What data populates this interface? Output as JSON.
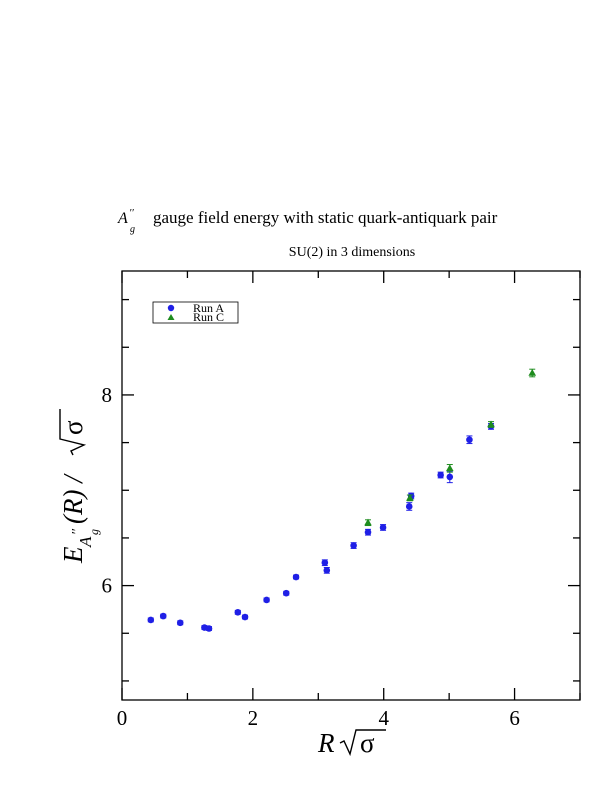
{
  "chart_data": {
    "type": "scatter",
    "title": "gauge field energy with static quark-antiquark pair",
    "title_symbol": "A",
    "title_symbol_sup": "′′",
    "title_symbol_sub": "g",
    "subtitle": "SU(2) in 3 dimensions",
    "xlabel": {
      "main": "R",
      "sqrt": "σ"
    },
    "ylabel": {
      "main": "E",
      "sup": "′′",
      "sub": "A",
      "subsub": "g",
      "arg": "(R) / ",
      "sqrt": "σ"
    },
    "xlim": [
      0,
      7
    ],
    "ylim": [
      4.8,
      9.3
    ],
    "x_ticks": [
      0,
      2,
      4,
      6
    ],
    "y_ticks": [
      6,
      8
    ],
    "grid": false,
    "legend_position": "top-left",
    "series": [
      {
        "name": "Run A",
        "color": "#1f1fe6",
        "marker": "circle",
        "points": [
          {
            "x": 0.44,
            "y": 5.64,
            "err": 0.02
          },
          {
            "x": 0.63,
            "y": 5.68,
            "err": 0.02
          },
          {
            "x": 0.89,
            "y": 5.61,
            "err": 0.02
          },
          {
            "x": 1.26,
            "y": 5.56,
            "err": 0.02
          },
          {
            "x": 1.33,
            "y": 5.55,
            "err": 0.02
          },
          {
            "x": 1.77,
            "y": 5.72,
            "err": 0.02
          },
          {
            "x": 1.88,
            "y": 5.67,
            "err": 0.02
          },
          {
            "x": 2.21,
            "y": 5.85,
            "err": 0.02
          },
          {
            "x": 2.51,
            "y": 5.92,
            "err": 0.02
          },
          {
            "x": 2.66,
            "y": 6.09,
            "err": 0.02
          },
          {
            "x": 3.1,
            "y": 6.24,
            "err": 0.03
          },
          {
            "x": 3.13,
            "y": 6.16,
            "err": 0.03
          },
          {
            "x": 3.54,
            "y": 6.42,
            "err": 0.03
          },
          {
            "x": 3.76,
            "y": 6.56,
            "err": 0.03
          },
          {
            "x": 3.99,
            "y": 6.61,
            "err": 0.03
          },
          {
            "x": 4.39,
            "y": 6.83,
            "err": 0.04
          },
          {
            "x": 4.42,
            "y": 6.94,
            "err": 0.03
          },
          {
            "x": 4.87,
            "y": 7.16,
            "err": 0.03
          },
          {
            "x": 5.01,
            "y": 7.14,
            "err": 0.06
          },
          {
            "x": 5.31,
            "y": 7.53,
            "err": 0.04
          },
          {
            "x": 5.64,
            "y": 7.67,
            "err": 0.03
          }
        ]
      },
      {
        "name": "Run C",
        "color": "#1e8c1e",
        "marker": "triangle",
        "points": [
          {
            "x": 3.76,
            "y": 6.66,
            "err": 0.03
          },
          {
            "x": 4.4,
            "y": 6.92,
            "err": 0.03
          },
          {
            "x": 5.01,
            "y": 7.23,
            "err": 0.04
          },
          {
            "x": 5.64,
            "y": 7.69,
            "err": 0.03
          },
          {
            "x": 6.27,
            "y": 8.23,
            "err": 0.04
          }
        ]
      }
    ]
  }
}
